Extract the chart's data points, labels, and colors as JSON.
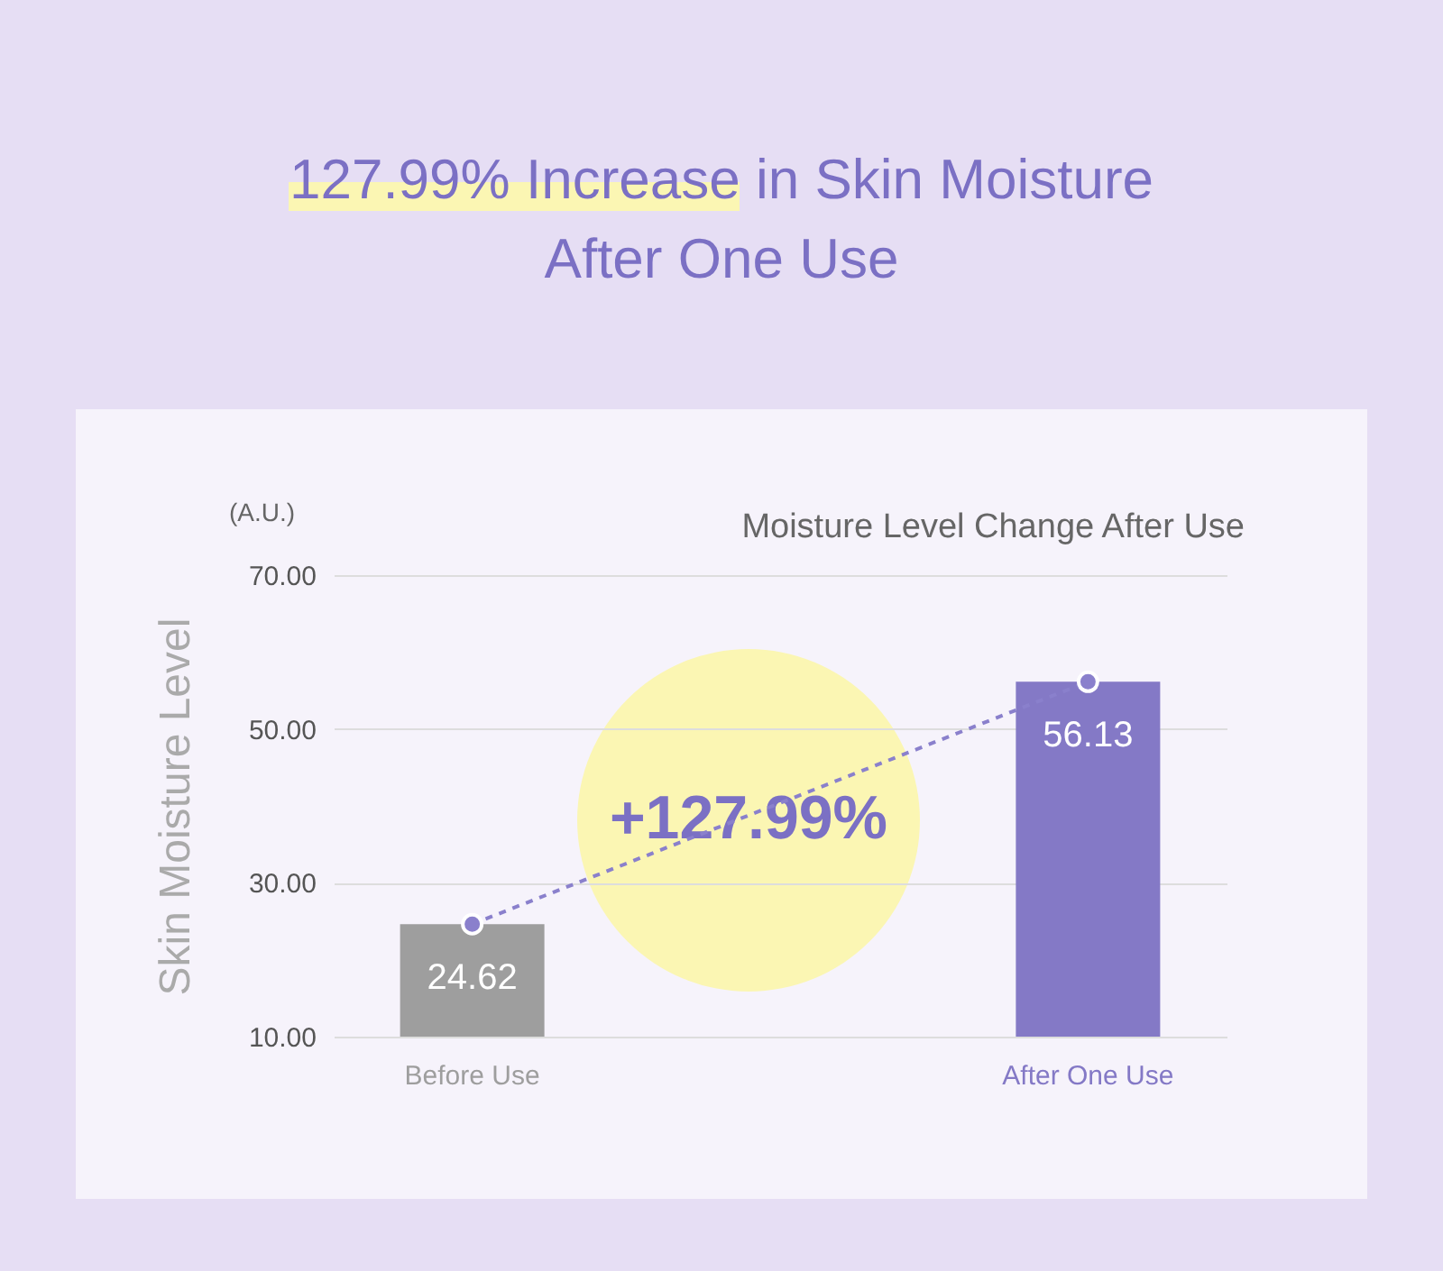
{
  "chart_data": {
    "type": "bar",
    "title": "127.99% Increase in Skin Moisture After One Use",
    "subtitle": "Moisture Level Change After Use",
    "ylabel": "Skin Moisture Level",
    "annotations": [
      "(A.U.)",
      "+127.99%"
    ],
    "categories": [
      "Before Use",
      "After One Use"
    ],
    "series": [
      {
        "values": [
          24.62,
          56.13
        ],
        "colors": [
          "#9e9e9e",
          "#8479c6"
        ],
        "value_labels": [
          "24.62",
          "56.13"
        ]
      },
      {
        "type": "line",
        "x": [
          "Before Use",
          "After One Use"
        ],
        "values": [
          24.62,
          56.13
        ],
        "color": "#8a80cc",
        "line_style": "dashed",
        "marker": "circle"
      }
    ],
    "ylim": [
      10,
      70
    ],
    "yticks": [
      {
        "value": 10,
        "label": "10.00"
      },
      {
        "value": 30,
        "label": "30.00"
      },
      {
        "value": 50,
        "label": "50.00"
      },
      {
        "value": 70,
        "label": "70.00"
      }
    ],
    "grid": "y",
    "legend": false
  }
}
